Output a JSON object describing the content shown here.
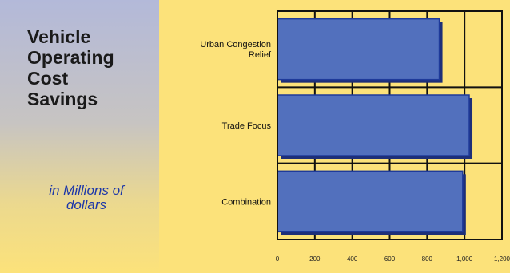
{
  "title_lines": [
    "Vehicle",
    "Operating",
    "Cost",
    "Savings"
  ],
  "subtitle_lines": [
    "in Millions of",
    "dollars"
  ],
  "chart_data": {
    "type": "bar",
    "orientation": "horizontal",
    "categories": [
      [
        "Urban Congestion",
        "Relief"
      ],
      [
        "Trade Focus"
      ],
      [
        "Combination"
      ]
    ],
    "values": [
      865,
      1025,
      990
    ],
    "xlim": [
      0,
      1200
    ],
    "xticks": [
      0,
      200,
      400,
      600,
      800,
      1000,
      1200
    ],
    "xtick_labels": [
      "0",
      "200",
      "400",
      "600",
      "800",
      "1,000",
      "1,200"
    ],
    "grid": true,
    "bar_color": "#5270bd",
    "bar_edge_color": "#1e3a9a",
    "axis_color": "#111111"
  }
}
